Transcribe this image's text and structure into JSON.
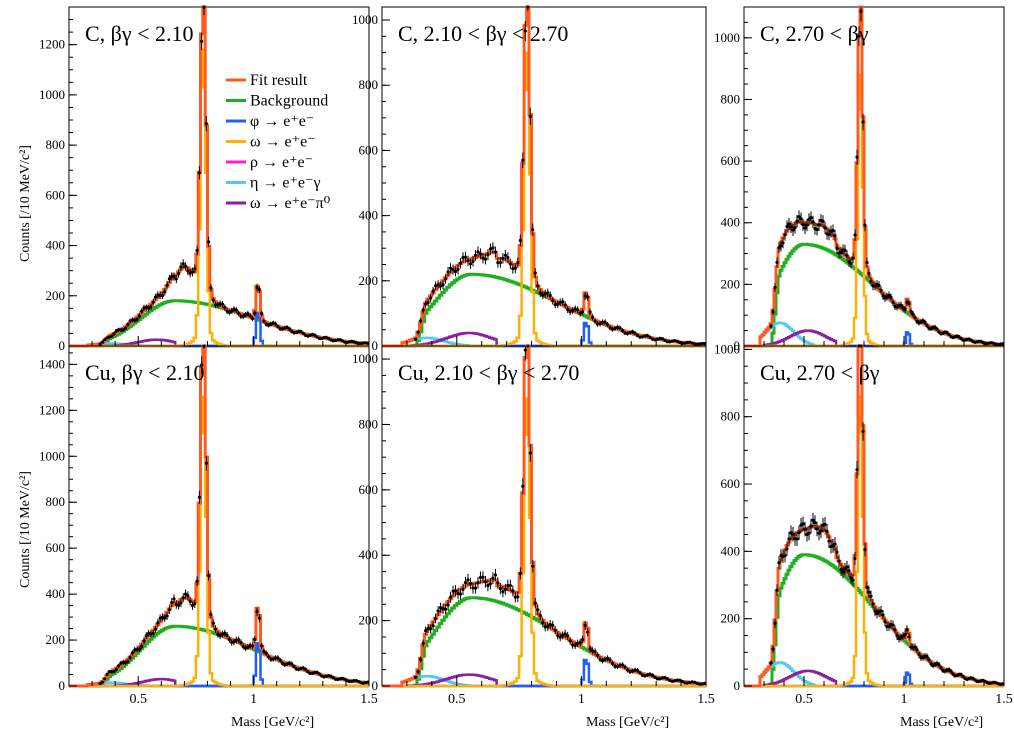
{
  "figure": {
    "y_axis_label": "Counts [/10 MeV/c²]",
    "x_axis_label": "Mass [GeV/c²]"
  },
  "legend": [
    {
      "label": "Fit result",
      "color": "#ff5a1f"
    },
    {
      "label": "Background",
      "color": "#1fae1f"
    },
    {
      "label": "φ → e⁺e⁻",
      "color": "#1f5fff"
    },
    {
      "label": "ω → e⁺e⁻",
      "color": "#ffb000"
    },
    {
      "label": "ρ → e⁺e⁻",
      "color": "#ff1fd0"
    },
    {
      "label": "η → e⁺e⁻γ",
      "color": "#4fc8ff"
    },
    {
      "label": "ω → e⁺e⁻π⁰",
      "color": "#8a1fa0"
    }
  ],
  "chart_data": [
    {
      "type": "line",
      "title": "C, βγ < 2.10",
      "xlim": [
        0.2,
        1.5
      ],
      "ylim": [
        0,
        1350
      ],
      "xticks": [
        "0.5",
        "1",
        "1.5"
      ],
      "xtick_values": [
        0.5,
        1.0,
        1.5
      ],
      "yticks": [
        "0",
        "200",
        "400",
        "600",
        "800",
        "1000",
        "1200"
      ],
      "ytick_values": [
        0,
        200,
        400,
        600,
        800,
        1000,
        1200
      ],
      "params": {
        "bkgA": 180,
        "bkgMu": 0.66,
        "bkgSig": 0.15,
        "omegaA": 1180,
        "phiA": 150,
        "rhoA": 60,
        "etaA": 10,
        "dalitzA": 25,
        "dalitzMu": 0.58,
        "dalitzSig": 0.08,
        "excessA": 130,
        "excessMu": 0.7,
        "excessSig": 0.05
      }
    },
    {
      "type": "line",
      "title": "C, 2.10 < βγ < 2.70",
      "xlim": [
        0.2,
        1.5
      ],
      "ylim": [
        0,
        1040
      ],
      "xticks": [
        "0.5",
        "1",
        "1.5"
      ],
      "xtick_values": [
        0.5,
        1.0,
        1.5
      ],
      "yticks": [
        "0",
        "200",
        "400",
        "600",
        "800",
        "1000"
      ],
      "ytick_values": [
        0,
        200,
        400,
        600,
        800,
        1000
      ],
      "params": {
        "bkgA": 220,
        "bkgMu": 0.56,
        "bkgSig": 0.15,
        "omegaA": 900,
        "phiA": 80,
        "rhoA": 60,
        "etaA": 25,
        "dalitzA": 40,
        "dalitzMu": 0.55,
        "dalitzSig": 0.09,
        "excessA": 60,
        "excessMu": 0.68,
        "excessSig": 0.06
      }
    },
    {
      "type": "line",
      "title": "C, 2.70 < βγ",
      "xlim": [
        0.2,
        1.5
      ],
      "ylim": [
        0,
        1100
      ],
      "xticks": [
        "0.5",
        "1",
        "1.5"
      ],
      "xtick_values": [
        0.5,
        1.0,
        1.5
      ],
      "yticks": [
        "0",
        "200",
        "400",
        "600",
        "800",
        "1000"
      ],
      "ytick_values": [
        0,
        200,
        400,
        600,
        800,
        1000
      ],
      "params": {
        "bkgA": 330,
        "bkgMu": 0.5,
        "bkgSig": 0.15,
        "omegaA": 880,
        "phiA": 50,
        "rhoA": 60,
        "etaA": 75,
        "dalitzA": 50,
        "dalitzMu": 0.52,
        "dalitzSig": 0.09,
        "excessA": 40,
        "excessMu": 0.62,
        "excessSig": 0.06
      }
    },
    {
      "type": "line",
      "title": "Cu, βγ < 2.10",
      "xlim": [
        0.2,
        1.5
      ],
      "ylim": [
        0,
        1480
      ],
      "xticks": [
        "0.5",
        "1",
        "1.5"
      ],
      "xtick_values": [
        0.5,
        1.0,
        1.5
      ],
      "yticks": [
        "0",
        "200",
        "400",
        "600",
        "800",
        "1000",
        "1200",
        "1400"
      ],
      "ytick_values": [
        0,
        200,
        400,
        600,
        800,
        1000,
        1200,
        1400
      ],
      "params": {
        "bkgA": 260,
        "bkgMu": 0.66,
        "bkgSig": 0.15,
        "omegaA": 1260,
        "phiA": 210,
        "rhoA": 60,
        "etaA": 15,
        "dalitzA": 30,
        "dalitzMu": 0.6,
        "dalitzSig": 0.08,
        "excessA": 120,
        "excessMu": 0.7,
        "excessSig": 0.05
      }
    },
    {
      "type": "line",
      "title": "Cu, 2.10 < βγ < 2.70",
      "xlim": [
        0.2,
        1.5
      ],
      "ylim": [
        0,
        1040
      ],
      "xticks": [
        "0.5",
        "1",
        "1.5"
      ],
      "xtick_values": [
        0.5,
        1.0,
        1.5
      ],
      "yticks": [
        "0",
        "200",
        "400",
        "600",
        "800",
        "1000"
      ],
      "ytick_values": [
        0,
        200,
        400,
        600,
        800,
        1000
      ],
      "params": {
        "bkgA": 270,
        "bkgMu": 0.56,
        "bkgSig": 0.15,
        "omegaA": 880,
        "phiA": 90,
        "rhoA": 60,
        "etaA": 30,
        "dalitzA": 35,
        "dalitzMu": 0.55,
        "dalitzSig": 0.09,
        "excessA": 50,
        "excessMu": 0.68,
        "excessSig": 0.06
      }
    },
    {
      "type": "line",
      "title": "Cu, 2.70 < βγ",
      "xlim": [
        0.2,
        1.5
      ],
      "ylim": [
        0,
        1010
      ],
      "xticks": [
        "0.5",
        "1",
        "1.5"
      ],
      "xtick_values": [
        0.5,
        1.0,
        1.5
      ],
      "yticks": [
        "0",
        "200",
        "400",
        "600",
        "800",
        "1000"
      ],
      "ytick_values": [
        0,
        200,
        400,
        600,
        800,
        1000
      ],
      "params": {
        "bkgA": 390,
        "bkgMu": 0.5,
        "bkgSig": 0.15,
        "omegaA": 860,
        "phiA": 45,
        "rhoA": 60,
        "etaA": 70,
        "dalitzA": 45,
        "dalitzMu": 0.52,
        "dalitzSig": 0.09,
        "excessA": 60,
        "excessMu": 0.6,
        "excessSig": 0.06
      }
    }
  ]
}
